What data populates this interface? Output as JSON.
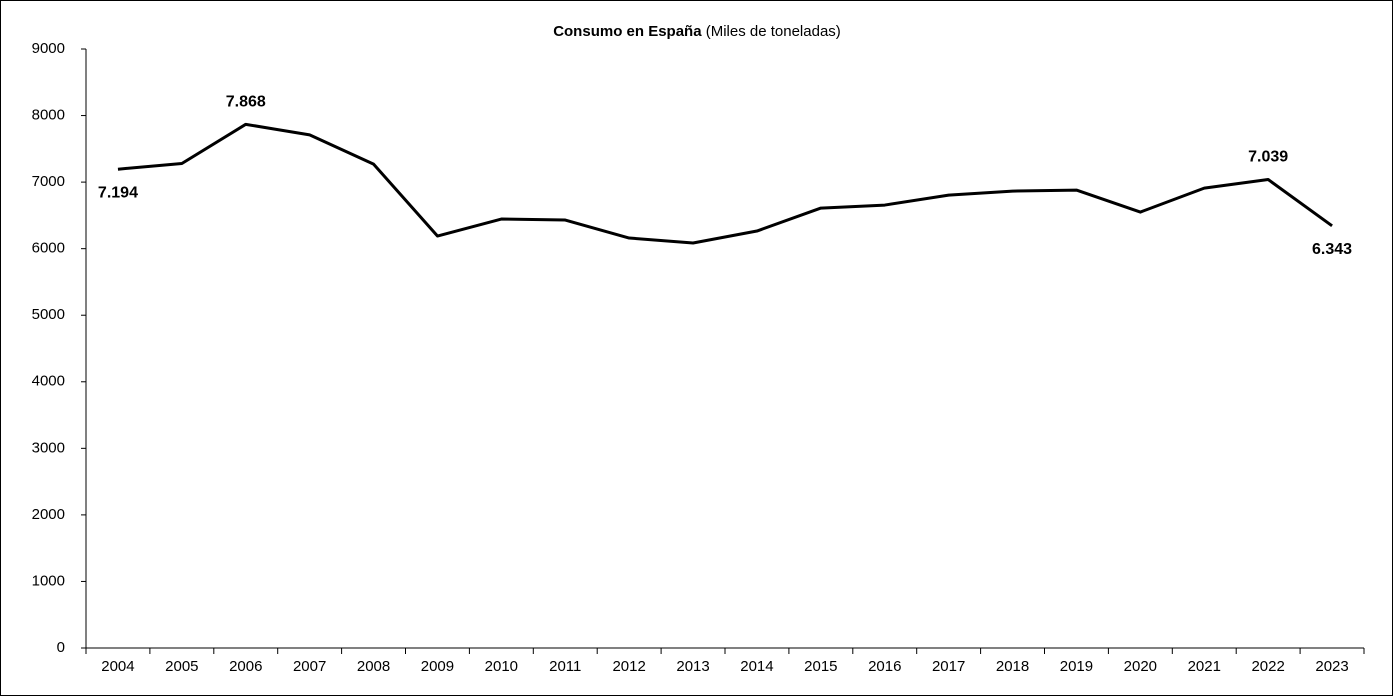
{
  "chart_data": {
    "type": "line",
    "title": "Consumo en España",
    "subtitle": "(Miles de toneladas)",
    "categories": [
      "2004",
      "2005",
      "2006",
      "2007",
      "2008",
      "2009",
      "2010",
      "2011",
      "2012",
      "2013",
      "2014",
      "2015",
      "2016",
      "2017",
      "2018",
      "2019",
      "2020",
      "2021",
      "2022",
      "2023"
    ],
    "series": [
      {
        "name": "Consumo",
        "color": "#000000",
        "values": [
          7194,
          7280,
          7868,
          7710,
          7270,
          6190,
          6445,
          6430,
          6160,
          6085,
          6265,
          6610,
          6655,
          6805,
          6865,
          6880,
          6550,
          6910,
          7039,
          6343
        ],
        "value_labels": [
          "7.194",
          null,
          "7.868",
          null,
          null,
          null,
          null,
          null,
          null,
          null,
          null,
          null,
          null,
          null,
          null,
          null,
          null,
          null,
          "7.039",
          "6.343"
        ]
      }
    ],
    "ylim": [
      0,
      9000
    ],
    "yticks": [
      0,
      1000,
      2000,
      3000,
      4000,
      5000,
      6000,
      7000,
      8000,
      9000
    ],
    "grid": false
  }
}
